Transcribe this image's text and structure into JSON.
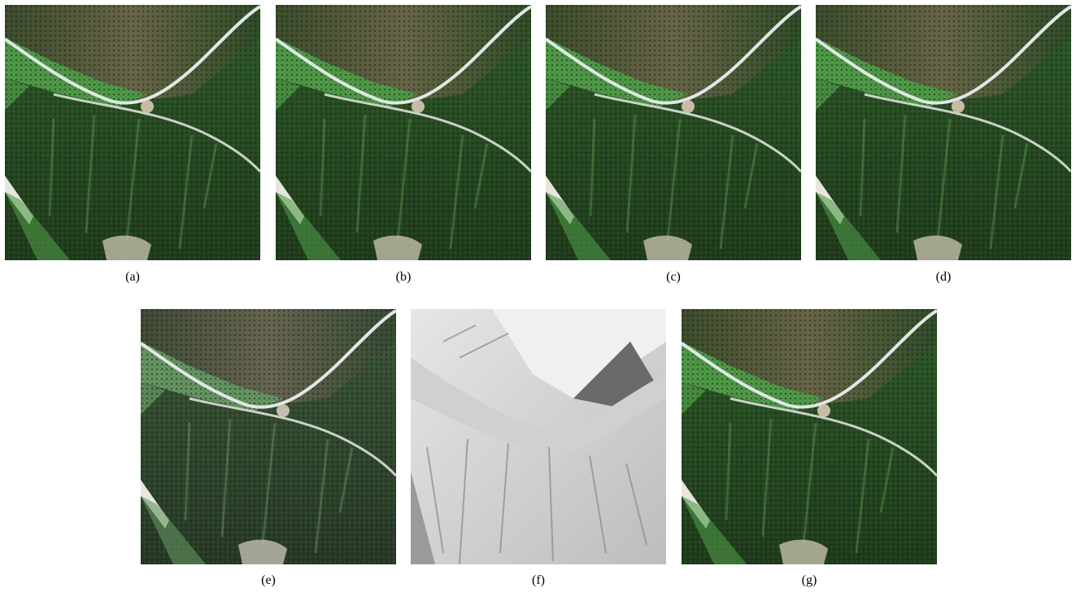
{
  "figure": {
    "panels": [
      {
        "id": "a",
        "label": "(a)",
        "kind": "satellite-rgb",
        "tone": "original"
      },
      {
        "id": "b",
        "label": "(b)",
        "kind": "satellite-rgb",
        "tone": "original"
      },
      {
        "id": "c",
        "label": "(c)",
        "kind": "satellite-rgb",
        "tone": "original"
      },
      {
        "id": "d",
        "label": "(d)",
        "kind": "satellite-rgb",
        "tone": "original"
      },
      {
        "id": "e",
        "label": "(e)",
        "kind": "satellite-rgb",
        "tone": "shaded"
      },
      {
        "id": "f",
        "label": "(f)",
        "kind": "hillshade",
        "tone": "grayscale"
      },
      {
        "id": "g",
        "label": "(g)",
        "kind": "satellite-rgb",
        "tone": "original"
      }
    ],
    "colors": {
      "forest_dark": "#1f3a1c",
      "forest_mid": "#2f5a2a",
      "meadow": "#4f9a48",
      "river": "#dfe8e4",
      "bare_rock": "#cfc8b4",
      "hill_light": "#f0f0f0",
      "hill_dark": "#6a6a6a"
    }
  }
}
